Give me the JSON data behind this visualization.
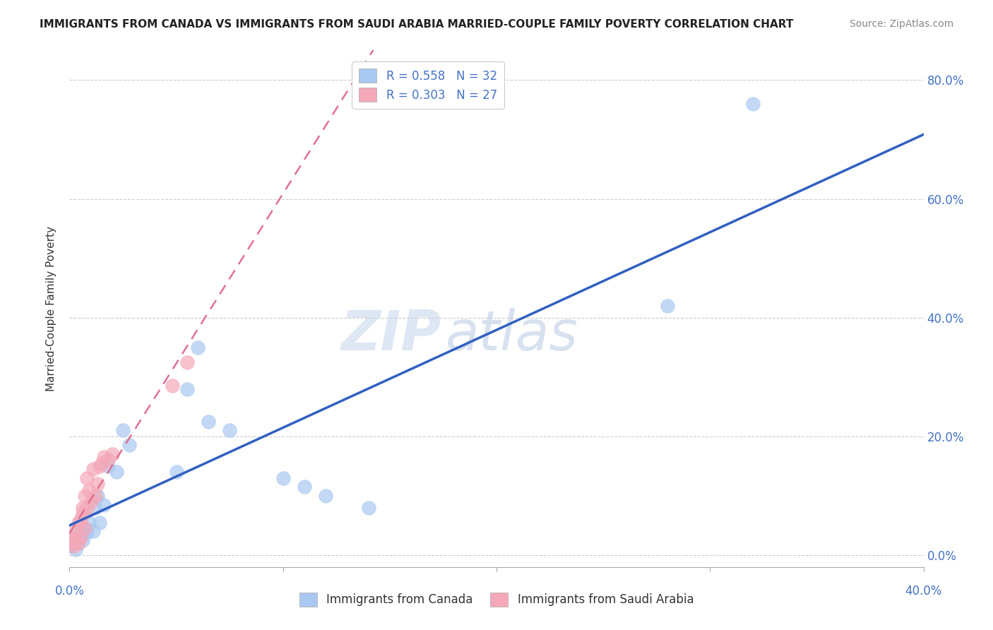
{
  "title": "IMMIGRANTS FROM CANADA VS IMMIGRANTS FROM SAUDI ARABIA MARRIED-COUPLE FAMILY POVERTY CORRELATION CHART",
  "source": "Source: ZipAtlas.com",
  "ylabel": "Married-Couple Family Poverty",
  "ytick_values": [
    0.0,
    0.2,
    0.4,
    0.6,
    0.8
  ],
  "xmin": 0.0,
  "xmax": 0.4,
  "ymin": -0.02,
  "ymax": 0.85,
  "legend_canada_R": "R = 0.558",
  "legend_canada_N": "N = 32",
  "legend_saudi_R": "R = 0.303",
  "legend_saudi_N": "N = 27",
  "canada_color": "#a8c8f0",
  "saudi_color": "#f4a8b8",
  "canada_line_color": "#3060c0",
  "saudi_line_color": "#e07090",
  "watermark_zip": "ZIP",
  "watermark_atlas": "atlas",
  "canada_x": [
    0.001,
    0.002,
    0.003,
    0.003,
    0.004,
    0.004,
    0.005,
    0.006,
    0.006,
    0.007,
    0.008,
    0.009,
    0.011,
    0.012,
    0.013,
    0.014,
    0.016,
    0.018,
    0.022,
    0.025,
    0.028,
    0.05,
    0.055,
    0.06,
    0.065,
    0.075,
    0.1,
    0.11,
    0.12,
    0.14,
    0.28,
    0.32
  ],
  "canada_y": [
    0.015,
    0.025,
    0.01,
    0.03,
    0.02,
    0.035,
    0.03,
    0.04,
    0.025,
    0.045,
    0.038,
    0.055,
    0.04,
    0.08,
    0.1,
    0.055,
    0.085,
    0.15,
    0.14,
    0.21,
    0.185,
    0.14,
    0.28,
    0.35,
    0.225,
    0.21,
    0.13,
    0.115,
    0.1,
    0.08,
    0.42,
    0.76
  ],
  "saudi_x": [
    0.001,
    0.002,
    0.002,
    0.003,
    0.003,
    0.004,
    0.004,
    0.005,
    0.005,
    0.006,
    0.006,
    0.007,
    0.007,
    0.008,
    0.008,
    0.009,
    0.01,
    0.011,
    0.012,
    0.013,
    0.014,
    0.015,
    0.016,
    0.018,
    0.02,
    0.048,
    0.055
  ],
  "saudi_y": [
    0.02,
    0.015,
    0.03,
    0.025,
    0.04,
    0.02,
    0.055,
    0.06,
    0.03,
    0.07,
    0.08,
    0.045,
    0.1,
    0.08,
    0.13,
    0.11,
    0.09,
    0.145,
    0.1,
    0.12,
    0.15,
    0.155,
    0.165,
    0.16,
    0.17,
    0.285,
    0.325
  ]
}
